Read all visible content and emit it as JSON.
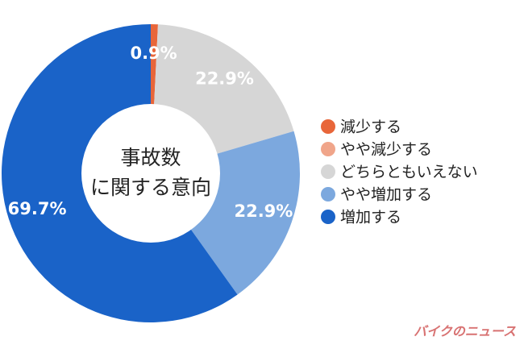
{
  "chart_data": {
    "type": "donut",
    "center_label": [
      "事故数",
      "に関する意向"
    ],
    "categories": [
      "減少する",
      "やや減少する",
      "どちらともいえない",
      "やや増加する",
      "増加する"
    ],
    "values": [
      0.9,
      0,
      22.9,
      22.9,
      69.7
    ],
    "value_labels": [
      "0.9%",
      null,
      "22.9%",
      "22.9%",
      "69.7%"
    ],
    "colors": [
      "#e8663a",
      "#f0a58a",
      "#d6d6d6",
      "#7ca8de",
      "#1a63c8"
    ],
    "legend": "right",
    "watermark": "バイクのニュース"
  }
}
